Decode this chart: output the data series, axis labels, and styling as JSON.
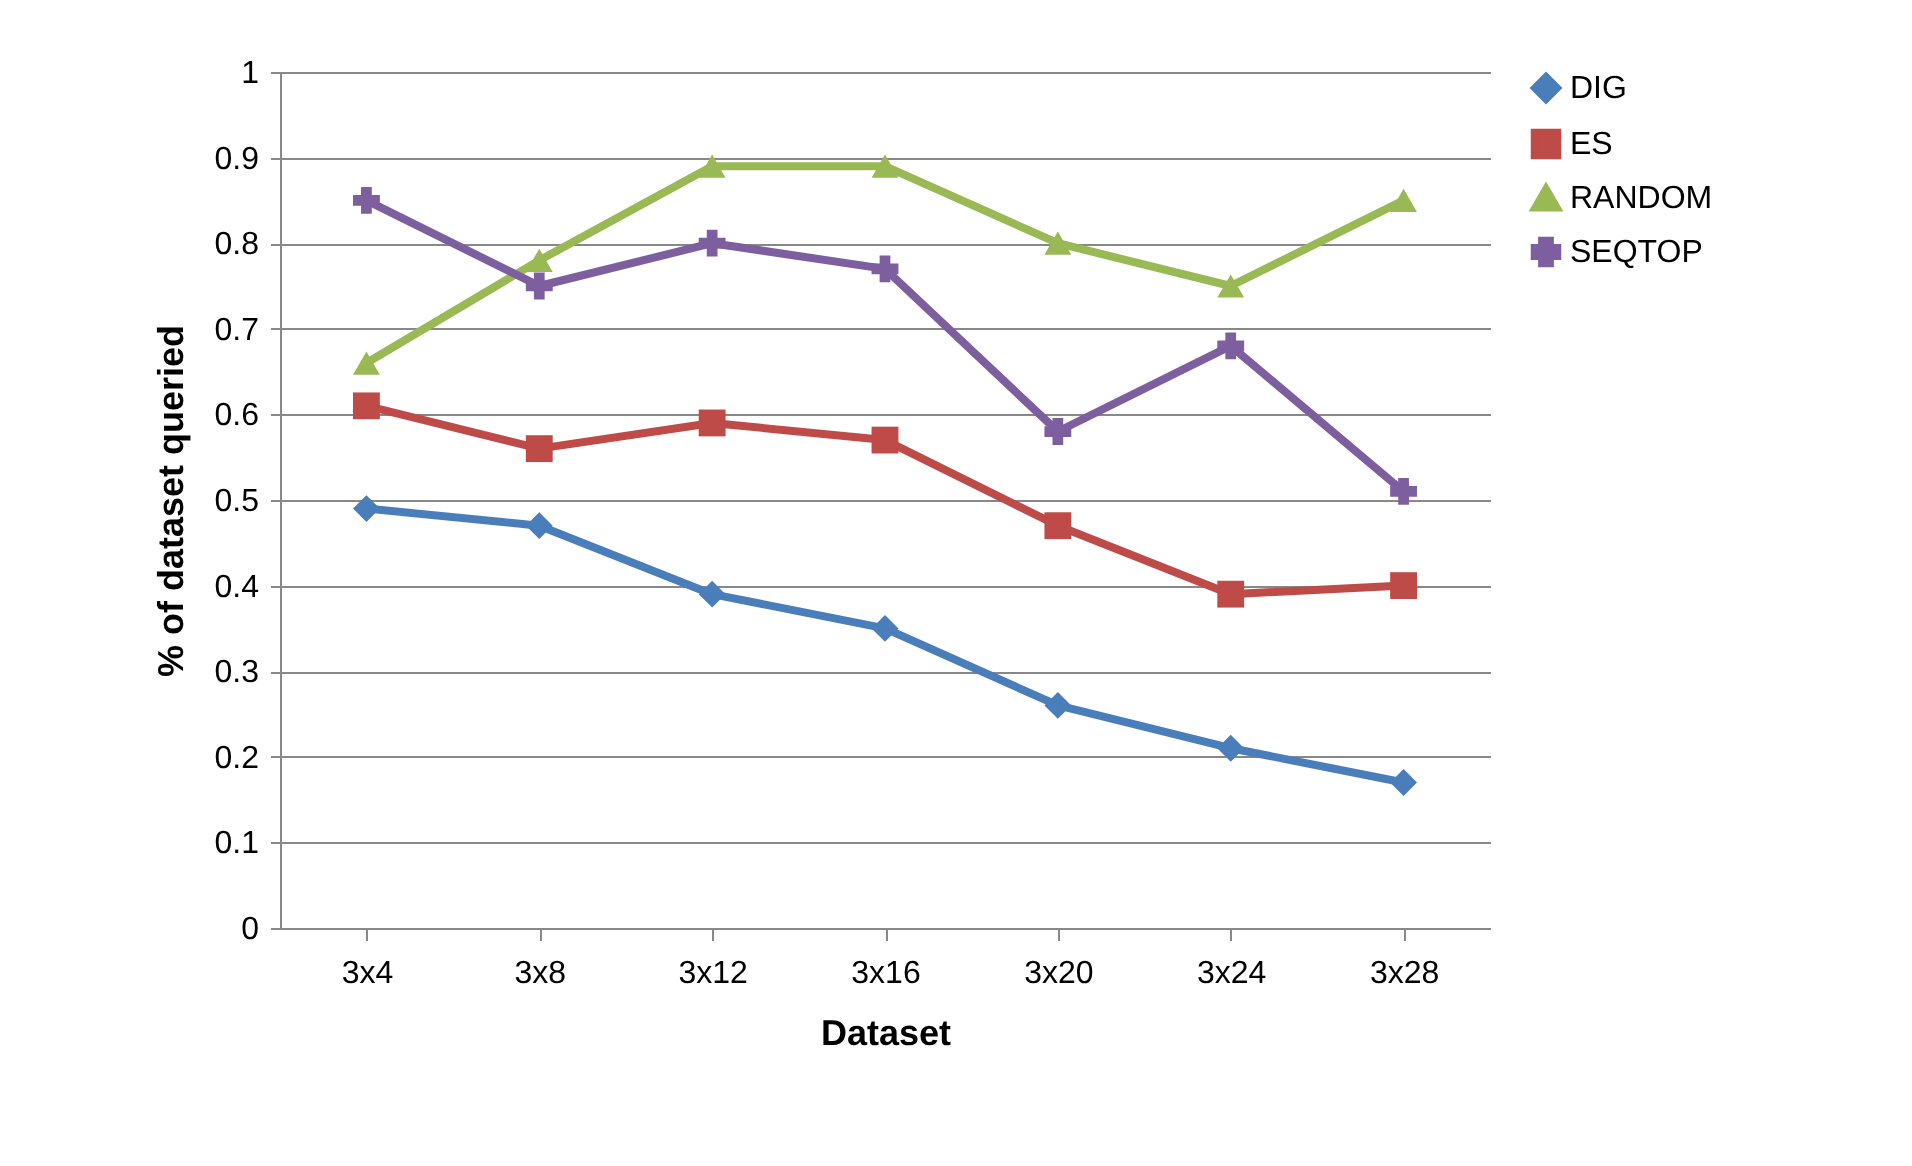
{
  "chart_data": {
    "type": "line",
    "xlabel": "Dataset",
    "ylabel": "% of dataset queried",
    "categories": [
      "3x4",
      "3x8",
      "3x12",
      "3x16",
      "3x20",
      "3x24",
      "3x28"
    ],
    "series": [
      {
        "name": "DIG",
        "color": "#4a7ebb",
        "marker": "diamond",
        "values": [
          0.49,
          0.47,
          0.39,
          0.35,
          0.26,
          0.21,
          0.17
        ]
      },
      {
        "name": "ES",
        "color": "#be4b48",
        "marker": "square",
        "values": [
          0.61,
          0.56,
          0.59,
          0.57,
          0.47,
          0.39,
          0.4
        ]
      },
      {
        "name": "RANDOM",
        "color": "#98b954",
        "marker": "triangle",
        "values": [
          0.66,
          0.78,
          0.89,
          0.89,
          0.8,
          0.75,
          0.85
        ]
      },
      {
        "name": "SEQTOP",
        "color": "#7d5fa0",
        "marker": "cross",
        "values": [
          0.85,
          0.75,
          0.8,
          0.77,
          0.58,
          0.68,
          0.51
        ]
      }
    ],
    "ylim": [
      0,
      1
    ],
    "yticks": [
      0,
      0.1,
      0.2,
      0.3,
      0.4,
      0.5,
      0.6,
      0.7,
      0.8,
      0.9,
      1
    ],
    "grid": "y",
    "legend": "right",
    "line_style": "solid"
  }
}
